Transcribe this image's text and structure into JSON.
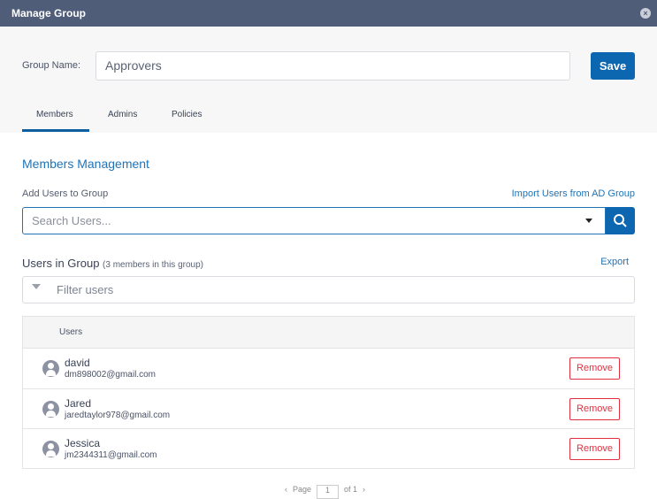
{
  "dialog": {
    "title": "Manage Group",
    "close_icon": "close-icon"
  },
  "group": {
    "label": "Group Name:",
    "value": "Approvers",
    "save_label": "Save"
  },
  "tabs": [
    {
      "label": "Members",
      "active": true
    },
    {
      "label": "Admins"
    },
    {
      "label": "Policies"
    }
  ],
  "members": {
    "heading": "Members Management",
    "add_label": "Add Users to Group",
    "import_link": "Import Users from AD Group",
    "search_placeholder": "Search Users...",
    "users_heading": "Users in Group",
    "member_count": "(3 members in this group)",
    "export_link": "Export",
    "filter_placeholder": "Filter users",
    "column_users": "Users",
    "rows": [
      {
        "name": "david",
        "email": "dm898002@gmail.com",
        "action": "Remove"
      },
      {
        "name": "Jared",
        "email": "jaredtaylor978@gmail.com",
        "action": "Remove"
      },
      {
        "name": "Jessica",
        "email": "jm2344311@gmail.com",
        "action": "Remove"
      }
    ]
  },
  "pagination": {
    "prev": "‹",
    "page_label": "Page",
    "page": "1",
    "of": "of 1",
    "next": "›"
  },
  "colors": {
    "header": "#4f5d78",
    "primary": "#0d66b0",
    "danger": "#e0303f"
  }
}
